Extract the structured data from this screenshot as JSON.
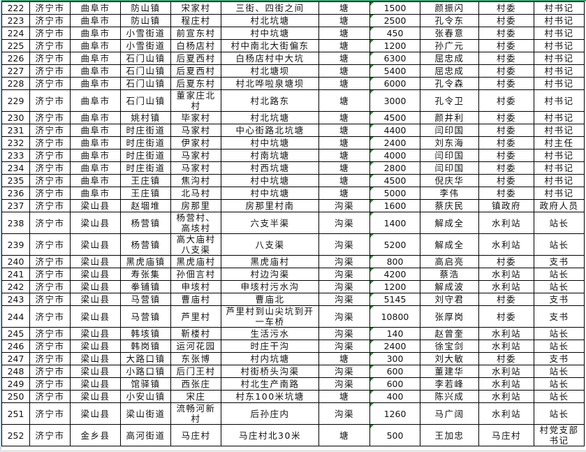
{
  "accent_color": "#21a366",
  "rows": [
    [
      "222",
      "济宁市",
      "曲阜市",
      "防山镇",
      "宋家村",
      "三街、四街之间",
      "塘",
      "1500",
      "颜振闪",
      "村委",
      "村书记"
    ],
    [
      "223",
      "济宁市",
      "曲阜市",
      "防山镇",
      "程庄村",
      "村北坑塘",
      "塘",
      "2500",
      "孔令东",
      "村委",
      "村书记"
    ],
    [
      "224",
      "济宁市",
      "曲阜市",
      "小雪街道",
      "前宣东村",
      "村中坑塘",
      "塘",
      "450",
      "张春意",
      "村委",
      "村书记"
    ],
    [
      "225",
      "济宁市",
      "曲阜市",
      "小雪街道",
      "白杨店村",
      "村中南北大街偏东",
      "塘",
      "1200",
      "孙广元",
      "村委",
      "村书记"
    ],
    [
      "226",
      "济宁市",
      "曲阜市",
      "石门山镇",
      "后夏西村",
      "白杨店村中大坑",
      "塘",
      "6300",
      "屈忠成",
      "村委",
      "村书记"
    ],
    [
      "227",
      "济宁市",
      "曲阜市",
      "石门山镇",
      "后夏西村",
      "村北塘坝",
      "塘",
      "5400",
      "屈忠成",
      "村委",
      "村书记"
    ],
    [
      "228",
      "济宁市",
      "曲阜市",
      "石门山镇",
      "后夏东村",
      "村北哗啦泉塘坝",
      "塘",
      "6000",
      "孔令森",
      "村委",
      "村书记"
    ],
    [
      "229",
      "济宁市",
      "曲阜市",
      "石门山镇",
      "董家庄北村",
      "村北路东",
      "塘",
      "3000",
      "孔令卫",
      "村委",
      "村书记"
    ],
    [
      "230",
      "济宁市",
      "曲阜市",
      "姚村镇",
      "毕家村",
      "村北坑塘",
      "塘",
      "4500",
      "颜井利",
      "村委",
      "村书记"
    ],
    [
      "231",
      "济宁市",
      "曲阜市",
      "时庄街道",
      "马家村",
      "中心街路北坑塘",
      "塘",
      "4400",
      "闫印国",
      "村委",
      "村书记"
    ],
    [
      "232",
      "济宁市",
      "曲阜市",
      "时庄街道",
      "伊家村",
      "村中坑塘",
      "塘",
      "2400",
      "刘东海",
      "村委",
      "村主任"
    ],
    [
      "233",
      "济宁市",
      "曲阜市",
      "时庄街道",
      "马家村",
      "村南坑塘",
      "塘",
      "4000",
      "闫印国",
      "村委",
      "村书记"
    ],
    [
      "234",
      "济宁市",
      "曲阜市",
      "时庄街道",
      "马家村",
      "村西坑塘",
      "塘",
      "2800",
      "闫印国",
      "村委",
      "村书记"
    ],
    [
      "235",
      "济宁市",
      "曲阜市",
      "王庄镇",
      "焦沟村",
      "村中坑塘",
      "塘",
      "4500",
      "倪庆华",
      "村委",
      "村书记"
    ],
    [
      "236",
      "济宁市",
      "曲阜市",
      "王庄镇",
      "北马村",
      "村中坑塘",
      "塘",
      "5000",
      "李伟",
      "村委",
      "村书记"
    ],
    [
      "237",
      "济宁市",
      "梁山县",
      "赵堌堆",
      "房那里",
      "房那里村南",
      "沟渠",
      "1600",
      "蔡庆民",
      "镇政府",
      "政府人员"
    ],
    [
      "238",
      "济宁市",
      "梁山县",
      "杨营镇",
      "杨营村、高垓村",
      "六支半渠",
      "沟渠",
      "1400",
      "解成全",
      "水利站",
      "站长"
    ],
    [
      "239",
      "济宁市",
      "梁山县",
      "杨营镇",
      "高大庙村八支渠",
      "八支渠",
      "沟渠",
      "5200",
      "解成全",
      "水利站",
      "站长"
    ],
    [
      "240",
      "济宁市",
      "梁山县",
      "黑虎庙镇",
      "黑虎庙村",
      "黑虎庙村",
      "沟渠",
      "800",
      "高启亮",
      "村委",
      "支书"
    ],
    [
      "241",
      "济宁市",
      "梁山县",
      "寿张集",
      "孙佃言村",
      "村边沟渠",
      "沟渠",
      "4200",
      "蔡浩",
      "水利站",
      "站长"
    ],
    [
      "242",
      "济宁市",
      "梁山县",
      "拳铺镇",
      "申垓村",
      "申垓村污水沟",
      "沟渠",
      "1200",
      "解成波",
      "水利站",
      "站长"
    ],
    [
      "243",
      "济宁市",
      "梁山县",
      "马营镇",
      "曹庙村",
      "曹庙北",
      "沟渠",
      "5145",
      "刘守君",
      "村委",
      "支书"
    ],
    [
      "244",
      "济宁市",
      "梁山县",
      "马营镇",
      "芦里村",
      "芦里村到山尖坑到开一车桥",
      "沟渠",
      "10800",
      "张厚岗",
      "村委",
      "支书"
    ],
    [
      "245",
      "济宁市",
      "梁山县",
      "韩垓镇",
      "靳楼村",
      "生活污水",
      "沟渠",
      "140",
      "赵曾奎",
      "水利站",
      "站长"
    ],
    [
      "246",
      "济宁市",
      "梁山县",
      "韩岗镇",
      "运河花园",
      "时庄干沟",
      "沟渠",
      "2400",
      "徐宝剑",
      "水利站",
      "站长"
    ],
    [
      "247",
      "济宁市",
      "梁山县",
      "大路口镇",
      "东张博",
      "村内坑塘",
      "塘",
      "300",
      "刘大敏",
      "村委",
      "支书"
    ],
    [
      "248",
      "济宁市",
      "梁山县",
      "小路口镇",
      "后门王村",
      "村街桥头沟渠",
      "沟渠",
      "600",
      "董建华",
      "水利站",
      "站长"
    ],
    [
      "249",
      "济宁市",
      "梁山县",
      "馆驿镇",
      "西张庄",
      "村北生产南路",
      "沟渠",
      "600",
      "李若峰",
      "水利站",
      "站长"
    ],
    [
      "250",
      "济宁市",
      "梁山县",
      "小安山镇",
      "宋庄",
      "村东100米坑塘",
      "塘",
      "400",
      "陈兴成",
      "水利站",
      "站长"
    ],
    [
      "251",
      "济宁市",
      "梁山县",
      "梁山街道",
      "流畅河新村",
      "后孙庄内",
      "沟渠",
      "1260",
      "马广阔",
      "水利站",
      "站长"
    ],
    [
      "252",
      "济宁市",
      "金乡县",
      "高河街道",
      "马庄村",
      "马庄村北30米",
      "塘",
      "500",
      "王加忠",
      "马庄村",
      "村党支部书记"
    ]
  ]
}
